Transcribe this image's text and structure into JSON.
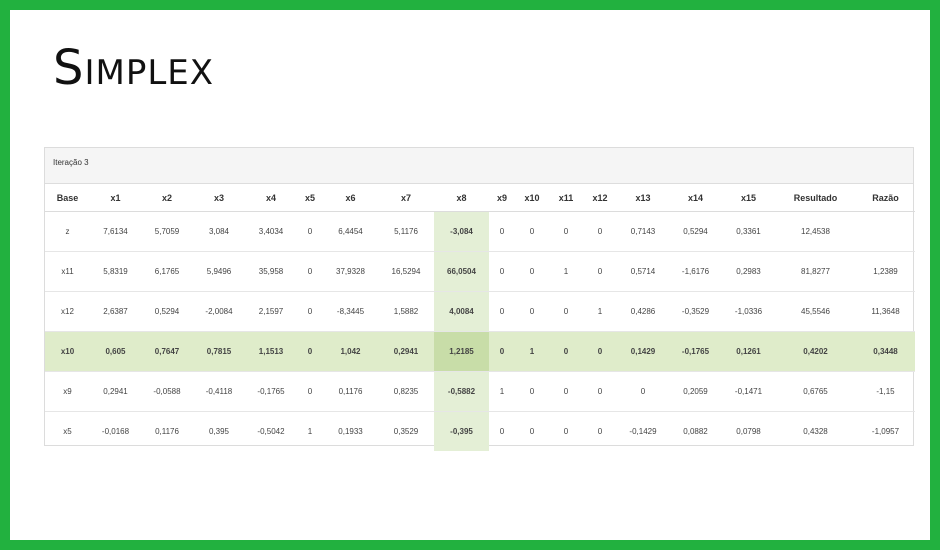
{
  "title": "Simplex",
  "panel": {
    "heading": "Iteração 3"
  },
  "table": {
    "headers": [
      "Base",
      "x1",
      "x2",
      "x3",
      "x4",
      "x5",
      "x6",
      "x7",
      "x8",
      "x9",
      "x10",
      "x11",
      "x12",
      "x13",
      "x14",
      "x15",
      "Resultado",
      "Razão"
    ],
    "pivot_column": "x8",
    "pivot_row_base": "x10",
    "rows": [
      [
        "z",
        "7,6134",
        "5,7059",
        "3,084",
        "3,4034",
        "0",
        "6,4454",
        "5,1176",
        "-3,084",
        "0",
        "0",
        "0",
        "0",
        "0,7143",
        "0,5294",
        "0,3361",
        "12,4538",
        ""
      ],
      [
        "x11",
        "5,8319",
        "6,1765",
        "5,9496",
        "35,958",
        "0",
        "37,9328",
        "16,5294",
        "66,0504",
        "0",
        "0",
        "1",
        "0",
        "0,5714",
        "-1,6176",
        "0,2983",
        "81,8277",
        "1,2389"
      ],
      [
        "x12",
        "2,6387",
        "0,5294",
        "-2,0084",
        "2,1597",
        "0",
        "-8,3445",
        "1,5882",
        "4,0084",
        "0",
        "0",
        "0",
        "1",
        "0,4286",
        "-0,3529",
        "-1,0336",
        "45,5546",
        "11,3648"
      ],
      [
        "x10",
        "0,605",
        "0,7647",
        "0,7815",
        "1,1513",
        "0",
        "1,042",
        "0,2941",
        "1,2185",
        "0",
        "1",
        "0",
        "0",
        "0,1429",
        "-0,1765",
        "0,1261",
        "0,4202",
        "0,3448"
      ],
      [
        "x9",
        "0,2941",
        "-0,0588",
        "-0,4118",
        "-0,1765",
        "0",
        "0,1176",
        "0,8235",
        "-0,5882",
        "1",
        "0",
        "0",
        "0",
        "0",
        "0,2059",
        "-0,1471",
        "0,6765",
        "-1,15"
      ],
      [
        "x5",
        "-0,0168",
        "0,1176",
        "0,395",
        "-0,5042",
        "1",
        "0,1933",
        "0,3529",
        "-0,395",
        "0",
        "0",
        "0",
        "0",
        "-0,1429",
        "0,0882",
        "0,0798",
        "0,4328",
        "-1,0957"
      ]
    ]
  }
}
